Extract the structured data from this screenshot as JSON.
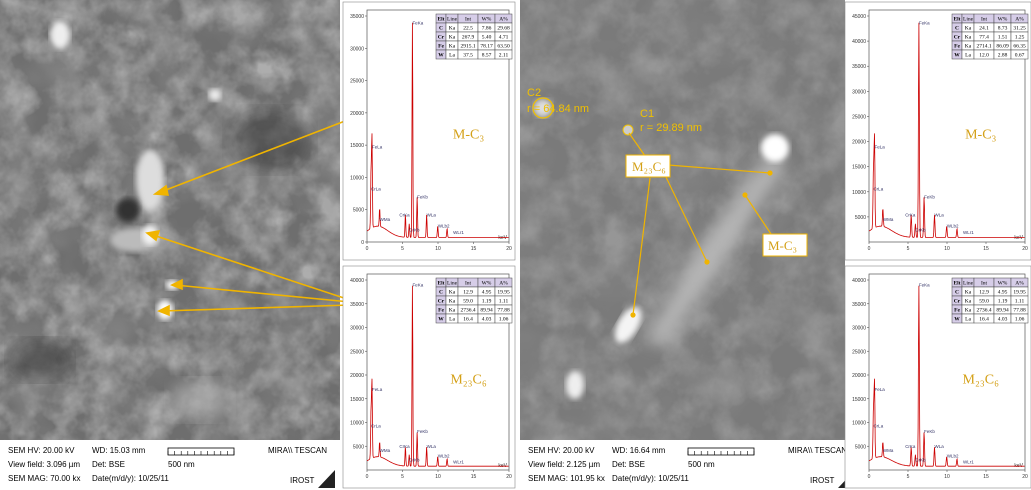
{
  "panels": [
    {
      "image": {
        "annotations": []
      },
      "footer": {
        "hv": "SEM HV: 20.00 kV",
        "wd": "WD: 15.03 mm",
        "brand": "MIRA\\\\ TESCAN",
        "view_field": "View field: 3.096 µm",
        "det": "Det: BSE",
        "scale": "500 nm",
        "mag": "SEM MAG: 70.00 kx",
        "date": "Date(m/d/y): 10/25/11",
        "lab": "IROST"
      },
      "spectra": [
        {
          "label": "M-C₃",
          "yticks": [
            "35000",
            "30000",
            "25000",
            "20000",
            "15000",
            "10000",
            "5000",
            "0"
          ],
          "xticks": [
            "0",
            "5",
            "10",
            "15",
            "20"
          ],
          "x_unit": "keV",
          "peaks": [
            "CrLa",
            "FeLa",
            "WMa",
            "CrKa",
            "CrKb",
            "FeKa",
            "FeKb",
            "WLa",
            "WLb2",
            "WLr1"
          ],
          "table": {
            "header": [
              "Elt",
              "Line",
              "Int",
              "W%",
              "A%"
            ],
            "rows": [
              [
                "C",
                "Ka",
                "22.5",
                "7.86",
                "29.68"
              ],
              [
                "Cr",
                "Ka",
                "267.9",
                "5.40",
                "4.71"
              ],
              [
                "Fe",
                "Ka",
                "2915.1",
                "78.17",
                "63.50"
              ],
              [
                "W",
                "La",
                "37.5",
                "8.57",
                "2.11"
              ]
            ]
          }
        },
        {
          "label": "M₂₃C₆",
          "yticks": [
            "40000",
            "35000",
            "30000",
            "25000",
            "20000",
            "15000",
            "10000",
            "5000"
          ],
          "xticks": [
            "0",
            "5",
            "10",
            "15",
            "20"
          ],
          "x_unit": "keV",
          "peaks": [
            "CrLa",
            "FeLa",
            "WMa",
            "CrKa",
            "CrKb",
            "FeKa",
            "FeKb",
            "WLa",
            "WLb2",
            "WLr1"
          ],
          "table": {
            "header": [
              "Elt",
              "Line",
              "Int",
              "W%",
              "A%"
            ],
            "rows": [
              [
                "C",
                "Ka",
                "12.9",
                "4.95",
                "19.95"
              ],
              [
                "Cr",
                "Ka",
                "59.0",
                "1.19",
                "1.11"
              ],
              [
                "Fe",
                "Ka",
                "2736.4",
                "89.94",
                "77.88"
              ],
              [
                "W",
                "La",
                "16.4",
                "4.03",
                "1.06"
              ]
            ]
          }
        }
      ]
    },
    {
      "image": {
        "annotations": [
          "C2",
          "r = 64.84 nm",
          "C1",
          "r = 29.89 nm",
          "M₂₃C₆",
          "M-C₃"
        ]
      },
      "footer": {
        "hv": "SEM HV: 20.00 kV",
        "wd": "WD: 16.64 mm",
        "brand": "MIRA\\\\ TESCAN",
        "view_field": "View field: 2.125 µm",
        "det": "Det: BSE",
        "scale": "500 nm",
        "mag": "SEM MAG: 101.95 kx",
        "date": "Date(m/d/y): 10/25/11",
        "lab": "IROST"
      },
      "spectra": [
        {
          "label": "M-C₃",
          "yticks": [
            "45000",
            "40000",
            "35000",
            "30000",
            "25000",
            "20000",
            "15000",
            "10000",
            "5000"
          ],
          "xticks": [
            "0",
            "5",
            "10",
            "15",
            "20"
          ],
          "x_unit": "keV",
          "peaks": [
            "CrLa",
            "FeLa",
            "WMa",
            "CrKa",
            "CrKb",
            "FeKa",
            "FeKb",
            "WLa",
            "WLb2",
            "WLr1"
          ],
          "table": {
            "header": [
              "Elt",
              "Line",
              "Int",
              "W%",
              "A%"
            ],
            "rows": [
              [
                "C",
                "Ka",
                "24.1",
                "8.73",
                "31.25"
              ],
              [
                "Cr",
                "Ka",
                "77.4",
                "1.51",
                "1.25"
              ],
              [
                "Fe",
                "Ka",
                "2714.1",
                "86.09",
                "66.35"
              ],
              [
                "W",
                "La",
                "12.0",
                "2.88",
                "0.67"
              ]
            ]
          }
        },
        {
          "label": "M₂₃C₆",
          "yticks": [
            "40000",
            "35000",
            "30000",
            "25000",
            "20000",
            "15000",
            "10000",
            "5000"
          ],
          "xticks": [
            "0",
            "5",
            "10",
            "15",
            "20"
          ],
          "x_unit": "keV",
          "peaks": [
            "CrLa",
            "FeLa",
            "WMa",
            "CrKa",
            "CrKb",
            "FeKa",
            "FeKb",
            "WLa",
            "WLb2",
            "WLr1"
          ],
          "table": {
            "header": [
              "Elt",
              "Line",
              "Int",
              "W%",
              "A%"
            ],
            "rows": [
              [
                "C",
                "Ka",
                "12.9",
                "4.95",
                "19.95"
              ],
              [
                "Cr",
                "Ka",
                "59.0",
                "1.19",
                "1.11"
              ],
              [
                "Fe",
                "Ka",
                "2736.4",
                "89.94",
                "77.88"
              ],
              [
                "W",
                "La",
                "16.4",
                "4.03",
                "1.06"
              ]
            ]
          }
        }
      ]
    }
  ]
}
